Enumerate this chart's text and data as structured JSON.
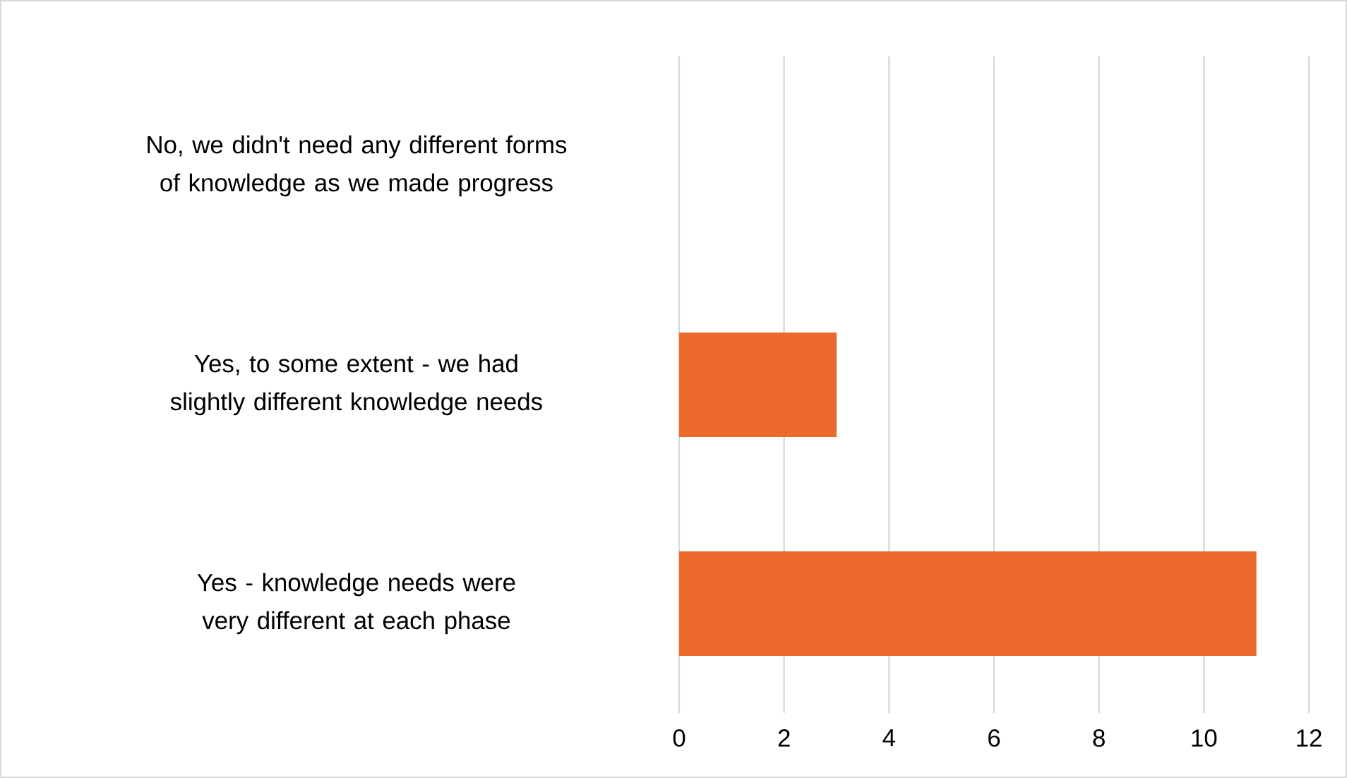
{
  "chart_data": {
    "type": "bar",
    "orientation": "horizontal",
    "categories": [
      "No, we didn't need any different forms of knowledge as we made progress",
      "Yes, to some extent - we had slightly different knowledge needs",
      "Yes - knowledge needs were very different at each phase"
    ],
    "values": [
      0,
      3,
      11
    ],
    "color": "#ec6a2c",
    "xlim": [
      0,
      12
    ],
    "xticks": [
      0,
      2,
      4,
      6,
      8,
      10,
      12
    ],
    "grid": "x"
  }
}
